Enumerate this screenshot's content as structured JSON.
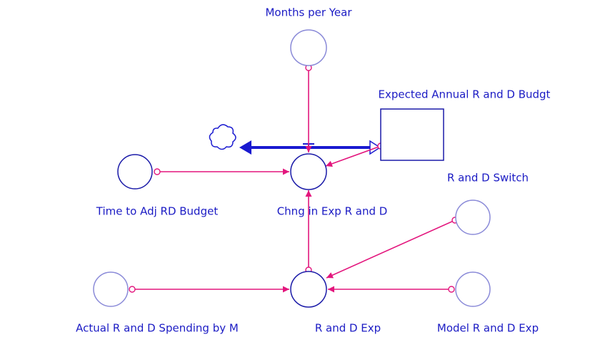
{
  "nodes": [
    {
      "label": "Months per Year"
    },
    {
      "label": "Expected Annual R and D Budgt"
    },
    {
      "label": "Chng in Exp R and D"
    },
    {
      "label": "Time to Adj RD Budget"
    },
    {
      "label": "R and D Switch"
    },
    {
      "label": "R and D Exp"
    },
    {
      "label": "Actual R and D Spending by M"
    },
    {
      "label": "Model R and D Exp"
    }
  ]
}
